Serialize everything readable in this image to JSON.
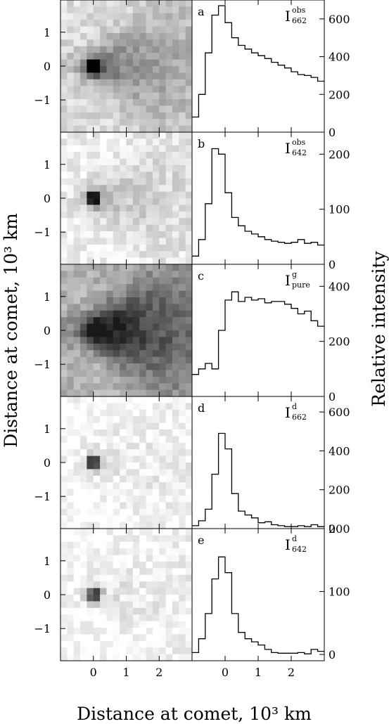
{
  "figure": {
    "xlabel": "Distance at comet, 10³ km",
    "ylabel_left": "Distance at comet, 10³ km",
    "ylabel_right": "Relative intensity"
  },
  "chart_data": [
    {
      "type": "heatmap",
      "panel": "a",
      "name": "I obs 662",
      "xlim": [
        -1.0,
        3.0
      ],
      "ylim": [
        -1.95,
        1.95
      ],
      "xticks": [
        0,
        1,
        2
      ],
      "yticks": [
        -1,
        0,
        1
      ],
      "nucleus": [
        0,
        0
      ],
      "peak_darkness": 1.0,
      "core_darkness": 0.95,
      "halo_darkness": 0.45,
      "background_darkness": 0.14
    },
    {
      "type": "line",
      "panel": "a",
      "label": "a",
      "title_main": "I",
      "title_sup": "obs",
      "title_sub": "662",
      "xlim": [
        -1.0,
        3.0
      ],
      "ylim": [
        0,
        700
      ],
      "xticks": [
        0,
        1,
        2
      ],
      "yticks": [
        0,
        200,
        400,
        600
      ],
      "x": [
        -0.9,
        -0.7,
        -0.5,
        -0.3,
        -0.1,
        0.1,
        0.3,
        0.5,
        0.7,
        0.9,
        1.1,
        1.3,
        1.5,
        1.7,
        1.9,
        2.1,
        2.3,
        2.5,
        2.7,
        2.9
      ],
      "y": [
        80,
        200,
        420,
        620,
        670,
        580,
        500,
        460,
        440,
        420,
        405,
        390,
        370,
        355,
        340,
        320,
        305,
        300,
        290,
        270
      ]
    },
    {
      "type": "heatmap",
      "panel": "b",
      "name": "I obs 642",
      "xlim": [
        -1.0,
        3.0
      ],
      "ylim": [
        -1.95,
        1.95
      ],
      "xticks": [
        0,
        1,
        2
      ],
      "yticks": [
        -1,
        0,
        1
      ],
      "nucleus": [
        0,
        0
      ],
      "peak_darkness": 1.0,
      "core_darkness": 0.95,
      "halo_darkness": 0.22,
      "background_darkness": 0.06
    },
    {
      "type": "line",
      "panel": "b",
      "label": "b",
      "title_main": "I",
      "title_sup": "obs",
      "title_sub": "642",
      "xlim": [
        -1.0,
        3.0
      ],
      "ylim": [
        0,
        240
      ],
      "xticks": [
        0,
        1,
        2
      ],
      "yticks": [
        0,
        100,
        200
      ],
      "x": [
        -0.9,
        -0.7,
        -0.5,
        -0.3,
        -0.1,
        0.1,
        0.3,
        0.5,
        0.7,
        0.9,
        1.1,
        1.3,
        1.5,
        1.7,
        1.9,
        2.1,
        2.3,
        2.5,
        2.7,
        2.9
      ],
      "y": [
        15,
        45,
        110,
        210,
        200,
        130,
        85,
        70,
        60,
        55,
        50,
        45,
        42,
        40,
        38,
        40,
        45,
        38,
        40,
        35
      ]
    },
    {
      "type": "heatmap",
      "panel": "c",
      "name": "I g pure",
      "xlim": [
        -1.0,
        3.0
      ],
      "ylim": [
        -1.95,
        1.95
      ],
      "xticks": [
        0,
        1,
        2
      ],
      "yticks": [
        -1,
        0,
        1
      ],
      "nucleus": [
        0,
        0
      ],
      "peak_darkness": 0.9,
      "core_darkness": 0.3,
      "halo_darkness": 0.75,
      "background_darkness": 0.3
    },
    {
      "type": "line",
      "panel": "c",
      "label": "c",
      "title_main": "I",
      "title_sup": "g",
      "title_sub": "pure",
      "xlim": [
        -1.0,
        3.0
      ],
      "ylim": [
        0,
        480
      ],
      "xticks": [
        0,
        1,
        2
      ],
      "yticks": [
        0,
        200,
        400
      ],
      "x": [
        -0.9,
        -0.7,
        -0.5,
        -0.3,
        -0.1,
        0.1,
        0.3,
        0.5,
        0.7,
        0.9,
        1.1,
        1.3,
        1.5,
        1.7,
        1.9,
        2.1,
        2.3,
        2.5,
        2.7,
        2.9
      ],
      "y": [
        80,
        100,
        120,
        100,
        240,
        350,
        380,
        345,
        360,
        350,
        355,
        340,
        345,
        345,
        335,
        320,
        300,
        310,
        275,
        255
      ]
    },
    {
      "type": "heatmap",
      "panel": "d",
      "name": "I d 662",
      "xlim": [
        -1.0,
        3.0
      ],
      "ylim": [
        -1.95,
        1.95
      ],
      "xticks": [
        0,
        1,
        2
      ],
      "yticks": [
        -1,
        0,
        1
      ],
      "nucleus": [
        0,
        0
      ],
      "peak_darkness": 1.0,
      "core_darkness": 0.95,
      "halo_darkness": 0.1,
      "background_darkness": 0.02
    },
    {
      "type": "line",
      "panel": "d",
      "label": "d",
      "title_main": "I",
      "title_sup": "d",
      "title_sub": "662",
      "xlim": [
        -1.0,
        3.0
      ],
      "ylim": [
        0,
        680
      ],
      "xticks": [
        0,
        1,
        2
      ],
      "yticks": [
        0,
        200,
        400,
        600
      ],
      "x": [
        -0.9,
        -0.7,
        -0.5,
        -0.3,
        -0.1,
        0.1,
        0.3,
        0.5,
        0.7,
        0.9,
        1.1,
        1.3,
        1.5,
        1.7,
        1.9,
        2.1,
        2.3,
        2.5,
        2.7,
        2.9
      ],
      "y": [
        15,
        40,
        100,
        280,
        490,
        410,
        180,
        90,
        70,
        55,
        30,
        35,
        20,
        15,
        10,
        10,
        15,
        10,
        20,
        10
      ]
    },
    {
      "type": "heatmap",
      "panel": "e",
      "name": "I d 642",
      "xlim": [
        -1.0,
        3.0
      ],
      "ylim": [
        -1.95,
        1.95
      ],
      "xticks": [
        0,
        1,
        2
      ],
      "yticks": [
        -1,
        0,
        1
      ],
      "nucleus": [
        0,
        0
      ],
      "peak_darkness": 0.9,
      "core_darkness": 0.85,
      "halo_darkness": 0.1,
      "background_darkness": 0.02
    },
    {
      "type": "line",
      "panel": "e",
      "label": "e",
      "title_main": "I",
      "title_sup": "d",
      "title_sub": "642",
      "xlim": [
        -1.0,
        3.0
      ],
      "ylim": [
        -10,
        200
      ],
      "xticks": [
        0,
        1,
        2
      ],
      "yticks": [
        0,
        100,
        200
      ],
      "x": [
        -0.9,
        -0.7,
        -0.5,
        -0.3,
        -0.1,
        0.1,
        0.3,
        0.5,
        0.7,
        0.9,
        1.1,
        1.3,
        1.5,
        1.7,
        1.9,
        2.1,
        2.3,
        2.5,
        2.7,
        2.9
      ],
      "y": [
        3,
        25,
        65,
        120,
        155,
        130,
        65,
        35,
        25,
        20,
        15,
        8,
        3,
        2,
        2,
        2,
        3,
        1,
        8,
        5
      ]
    }
  ]
}
